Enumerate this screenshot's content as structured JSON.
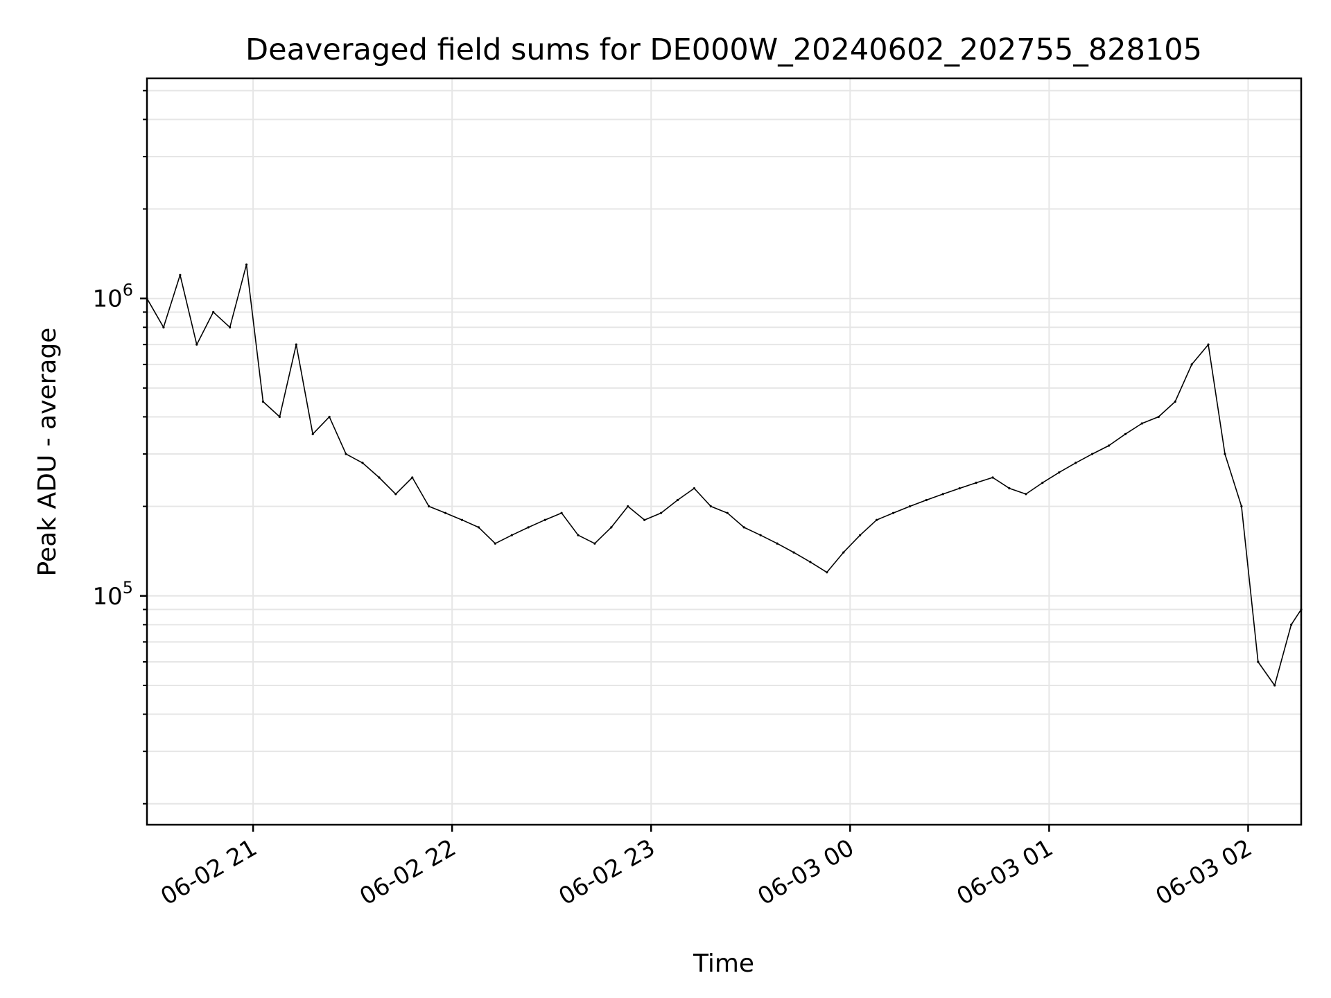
{
  "chart_data": {
    "type": "line",
    "title": "Deaveraged field sums for DE000W_20240602_202755_828105",
    "xlabel": "Time",
    "ylabel": "Peak ADU - average",
    "yscale": "log",
    "ylim": [
      17000,
      5500000
    ],
    "xlim": [
      "2024-06-02 20:28",
      "2024-06-03 02:16"
    ],
    "grid": true,
    "x_ticks": [
      {
        "time": "2024-06-02 21:00",
        "label": "06-02 21"
      },
      {
        "time": "2024-06-02 22:00",
        "label": "06-02 22"
      },
      {
        "time": "2024-06-02 23:00",
        "label": "06-02 23"
      },
      {
        "time": "2024-06-03 00:00",
        "label": "06-03 00"
      },
      {
        "time": "2024-06-03 01:00",
        "label": "06-03 01"
      },
      {
        "time": "2024-06-03 02:00",
        "label": "06-03 02"
      }
    ],
    "y_ticks": [
      {
        "value": 100000,
        "base": "10",
        "exp": "5"
      },
      {
        "value": 1000000,
        "base": "10",
        "exp": "6"
      }
    ],
    "series_color": "#000000",
    "series": [
      {
        "x": [
          "2024-06-02 20:28",
          "2024-06-02 20:33",
          "2024-06-02 20:38",
          "2024-06-02 20:43",
          "2024-06-02 20:48",
          "2024-06-02 20:53",
          "2024-06-02 20:58",
          "2024-06-02 21:03",
          "2024-06-02 21:08",
          "2024-06-02 21:13",
          "2024-06-02 21:18",
          "2024-06-02 21:23",
          "2024-06-02 21:28",
          "2024-06-02 21:33",
          "2024-06-02 21:38",
          "2024-06-02 21:43",
          "2024-06-02 21:48",
          "2024-06-02 21:53",
          "2024-06-02 21:58",
          "2024-06-02 22:03",
          "2024-06-02 22:08",
          "2024-06-02 22:13",
          "2024-06-02 22:18",
          "2024-06-02 22:23",
          "2024-06-02 22:28",
          "2024-06-02 22:33",
          "2024-06-02 22:38",
          "2024-06-02 22:43",
          "2024-06-02 22:48",
          "2024-06-02 22:53",
          "2024-06-02 22:58",
          "2024-06-02 23:03",
          "2024-06-02 23:08",
          "2024-06-02 23:13",
          "2024-06-02 23:18",
          "2024-06-02 23:23",
          "2024-06-02 23:28",
          "2024-06-02 23:33",
          "2024-06-02 23:38",
          "2024-06-02 23:43",
          "2024-06-02 23:48",
          "2024-06-02 23:53",
          "2024-06-02 23:58",
          "2024-06-03 00:03",
          "2024-06-03 00:08",
          "2024-06-03 00:13",
          "2024-06-03 00:18",
          "2024-06-03 00:23",
          "2024-06-03 00:28",
          "2024-06-03 00:33",
          "2024-06-03 00:38",
          "2024-06-03 00:43",
          "2024-06-03 00:48",
          "2024-06-03 00:53",
          "2024-06-03 00:58",
          "2024-06-03 01:03",
          "2024-06-03 01:08",
          "2024-06-03 01:13",
          "2024-06-03 01:18",
          "2024-06-03 01:23",
          "2024-06-03 01:28",
          "2024-06-03 01:33",
          "2024-06-03 01:38",
          "2024-06-03 01:43",
          "2024-06-03 01:48",
          "2024-06-03 01:53",
          "2024-06-03 01:58",
          "2024-06-03 02:03",
          "2024-06-03 02:08",
          "2024-06-03 02:13",
          "2024-06-03 02:16"
        ],
        "y": [
          1000000,
          800000,
          1200000,
          700000,
          900000,
          800000,
          1300000,
          450000,
          400000,
          700000,
          350000,
          400000,
          300000,
          280000,
          250000,
          220000,
          250000,
          200000,
          190000,
          180000,
          170000,
          150000,
          160000,
          170000,
          180000,
          190000,
          160000,
          150000,
          170000,
          200000,
          180000,
          190000,
          210000,
          230000,
          200000,
          190000,
          170000,
          160000,
          150000,
          140000,
          130000,
          120000,
          140000,
          160000,
          180000,
          190000,
          200000,
          210000,
          220000,
          230000,
          240000,
          250000,
          230000,
          220000,
          240000,
          260000,
          280000,
          300000,
          320000,
          350000,
          380000,
          400000,
          450000,
          600000,
          700000,
          300000,
          200000,
          60000,
          50000,
          80000,
          90000
        ]
      }
    ]
  }
}
